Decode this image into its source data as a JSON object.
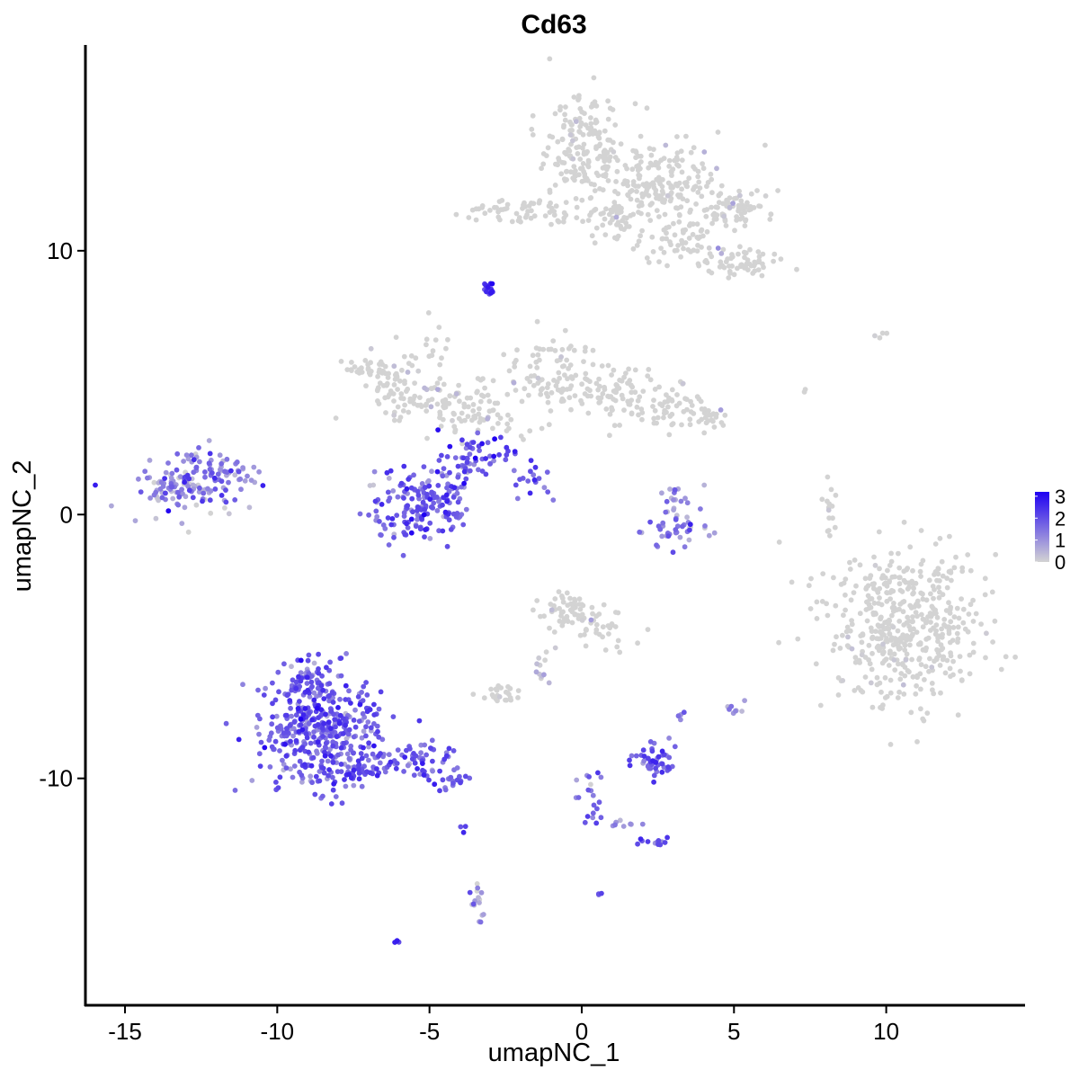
{
  "chart_data": {
    "type": "scatter",
    "title": "Cd63",
    "xlabel": "umapNC_1",
    "ylabel": "umapNC_2",
    "xlim": [
      -16.3,
      14.5
    ],
    "ylim": [
      -18.6,
      17.8
    ],
    "xticks": [
      -15,
      -10,
      -5,
      0,
      5,
      10
    ],
    "yticks": [
      -10,
      0,
      10
    ],
    "xtick_labels": [
      "-15",
      "-10",
      "-5",
      "0",
      "5",
      "10"
    ],
    "ytick_labels": [
      "-10",
      "0",
      "10"
    ],
    "grid": false,
    "legend": {
      "position": "right",
      "type": "colorbar",
      "min": 0,
      "max": 3.2,
      "ticks": [
        0,
        1,
        2,
        3
      ],
      "tick_labels": [
        "0",
        "1",
        "2",
        "3"
      ]
    },
    "colors": {
      "low": "#d3d3d3",
      "high": "#1f00f2"
    },
    "clusters": [
      {
        "x": 0.0,
        "y": 14.0,
        "sx": 0.65,
        "sy": 1.1,
        "n": 170,
        "expr": 0.05,
        "jitter": 0.3
      },
      {
        "x": 2.6,
        "y": 12.4,
        "sx": 1.1,
        "sy": 1.0,
        "n": 220,
        "expr": 0.04,
        "jitter": 0.3
      },
      {
        "x": 4.9,
        "y": 11.5,
        "sx": 0.6,
        "sy": 0.35,
        "n": 70,
        "expr": 0.04,
        "jitter": 0.3
      },
      {
        "x": 5.2,
        "y": 9.6,
        "sx": 0.6,
        "sy": 0.3,
        "n": 60,
        "expr": 0.05,
        "jitter": 0.3
      },
      {
        "x": 3.4,
        "y": 10.3,
        "sx": 0.6,
        "sy": 0.45,
        "n": 40,
        "expr": 0.04,
        "jitter": 0.3
      },
      {
        "x": 1.0,
        "y": 11.2,
        "sx": 0.35,
        "sy": 0.3,
        "n": 30,
        "expr": 0.05,
        "jitter": 0.3
      },
      {
        "x": -1.8,
        "y": 11.5,
        "sx": 1.1,
        "sy": 0.25,
        "n": 60,
        "expr": 0.05,
        "jitter": 0.3
      },
      {
        "x": -3.0,
        "y": 8.6,
        "sx": 0.12,
        "sy": 0.15,
        "n": 14,
        "expr": 2.5,
        "jitter": 0.4
      },
      {
        "x": -6.6,
        "y": 5.6,
        "sx": 0.6,
        "sy": 0.35,
        "n": 50,
        "expr": 0.08,
        "jitter": 0.3
      },
      {
        "x": -5.5,
        "y": 4.5,
        "sx": 0.8,
        "sy": 0.4,
        "n": 55,
        "expr": 0.1,
        "jitter": 0.3
      },
      {
        "x": -3.6,
        "y": 3.9,
        "sx": 1.0,
        "sy": 0.5,
        "n": 90,
        "expr": 0.2,
        "jitter": 0.4
      },
      {
        "x": -1.0,
        "y": 5.3,
        "sx": 0.8,
        "sy": 0.7,
        "n": 70,
        "expr": 0.1,
        "jitter": 0.3
      },
      {
        "x": 0.5,
        "y": 4.8,
        "sx": 0.8,
        "sy": 0.6,
        "n": 60,
        "expr": 0.1,
        "jitter": 0.3
      },
      {
        "x": 2.0,
        "y": 4.3,
        "sx": 0.9,
        "sy": 0.45,
        "n": 70,
        "expr": 0.08,
        "jitter": 0.3
      },
      {
        "x": 3.8,
        "y": 3.7,
        "sx": 0.5,
        "sy": 0.35,
        "n": 40,
        "expr": 0.05,
        "jitter": 0.3
      },
      {
        "x": -4.8,
        "y": 6.0,
        "sx": 0.2,
        "sy": 0.6,
        "n": 15,
        "expr": 0.05,
        "jitter": 0.3
      },
      {
        "x": -3.2,
        "y": 2.4,
        "sx": 0.6,
        "sy": 0.3,
        "n": 40,
        "expr": 2.0,
        "jitter": 0.6
      },
      {
        "x": -1.5,
        "y": 1.2,
        "sx": 0.5,
        "sy": 0.35,
        "n": 18,
        "expr": 1.9,
        "jitter": 0.5
      },
      {
        "x": -5.3,
        "y": 0.3,
        "sx": 0.85,
        "sy": 0.7,
        "n": 160,
        "expr": 1.8,
        "jitter": 0.6
      },
      {
        "x": -4.2,
        "y": 1.4,
        "sx": 0.45,
        "sy": 0.5,
        "n": 40,
        "expr": 1.7,
        "jitter": 0.6
      },
      {
        "x": -13.2,
        "y": 1.0,
        "sx": 0.9,
        "sy": 0.55,
        "n": 130,
        "expr": 1.2,
        "jitter": 0.8
      },
      {
        "x": -12.0,
        "y": 1.8,
        "sx": 0.45,
        "sy": 0.5,
        "n": 25,
        "expr": 1.0,
        "jitter": 0.7
      },
      {
        "x": -11.4,
        "y": 1.4,
        "sx": 0.4,
        "sy": 0.18,
        "n": 20,
        "expr": 1.3,
        "jitter": 0.6
      },
      {
        "x": 3.1,
        "y": -0.6,
        "sx": 0.6,
        "sy": 0.3,
        "n": 35,
        "expr": 1.5,
        "jitter": 0.7
      },
      {
        "x": 3.0,
        "y": 0.5,
        "sx": 0.4,
        "sy": 0.5,
        "n": 22,
        "expr": 0.7,
        "jitter": 0.7
      },
      {
        "x": 8.2,
        "y": 0.3,
        "sx": 0.15,
        "sy": 0.6,
        "n": 15,
        "expr": 0.02,
        "jitter": 0.2
      },
      {
        "x": 10.6,
        "y": -4.3,
        "sx": 1.25,
        "sy": 1.4,
        "n": 480,
        "expr": 0.03,
        "jitter": 0.2
      },
      {
        "x": -0.5,
        "y": -3.7,
        "sx": 0.45,
        "sy": 0.35,
        "n": 60,
        "expr": 0.2,
        "jitter": 0.4
      },
      {
        "x": 0.8,
        "y": -4.5,
        "sx": 0.45,
        "sy": 0.4,
        "n": 30,
        "expr": 0.2,
        "jitter": 0.4
      },
      {
        "x": -1.3,
        "y": -5.6,
        "sx": 0.2,
        "sy": 0.5,
        "n": 12,
        "expr": 0.3,
        "jitter": 0.4
      },
      {
        "x": -2.7,
        "y": -6.8,
        "sx": 0.35,
        "sy": 0.15,
        "n": 25,
        "expr": 0.2,
        "jitter": 0.3
      },
      {
        "x": -8.6,
        "y": -8.2,
        "sx": 1.0,
        "sy": 1.1,
        "n": 400,
        "expr": 1.75,
        "jitter": 0.5
      },
      {
        "x": -8.9,
        "y": -6.2,
        "sx": 0.45,
        "sy": 0.5,
        "n": 60,
        "expr": 1.7,
        "jitter": 0.5
      },
      {
        "x": -5.7,
        "y": -9.3,
        "sx": 0.7,
        "sy": 0.35,
        "n": 70,
        "expr": 1.8,
        "jitter": 0.5
      },
      {
        "x": -4.3,
        "y": -10.1,
        "sx": 0.35,
        "sy": 0.2,
        "n": 20,
        "expr": 1.8,
        "jitter": 0.5
      },
      {
        "x": -7.5,
        "y": -9.9,
        "sx": 0.4,
        "sy": 0.2,
        "n": 25,
        "expr": 2.2,
        "jitter": 0.4
      },
      {
        "x": 2.4,
        "y": -9.3,
        "sx": 0.35,
        "sy": 0.3,
        "n": 50,
        "expr": 1.8,
        "jitter": 0.5
      },
      {
        "x": 0.3,
        "y": -11.0,
        "sx": 0.3,
        "sy": 0.5,
        "n": 20,
        "expr": 1.6,
        "jitter": 0.5
      },
      {
        "x": 1.3,
        "y": -11.8,
        "sx": 0.35,
        "sy": 0.15,
        "n": 8,
        "expr": 1.2,
        "jitter": 0.6
      },
      {
        "x": 2.3,
        "y": -12.5,
        "sx": 0.3,
        "sy": 0.1,
        "n": 12,
        "expr": 1.9,
        "jitter": 0.5
      },
      {
        "x": -3.4,
        "y": -14.7,
        "sx": 0.15,
        "sy": 0.5,
        "n": 16,
        "expr": 0.9,
        "jitter": 0.7
      },
      {
        "x": -3.9,
        "y": -11.8,
        "sx": 0.05,
        "sy": 0.1,
        "n": 3,
        "expr": 2.0,
        "jitter": 0.3
      },
      {
        "x": -6.1,
        "y": -16.2,
        "sx": 0.05,
        "sy": 0.05,
        "n": 3,
        "expr": 2.6,
        "jitter": 0.3
      },
      {
        "x": 0.6,
        "y": -14.4,
        "sx": 0.04,
        "sy": 0.08,
        "n": 3,
        "expr": 2.0,
        "jitter": 0.3
      },
      {
        "x": 3.3,
        "y": -7.6,
        "sx": 0.1,
        "sy": 0.1,
        "n": 4,
        "expr": 1.0,
        "jitter": 0.5
      },
      {
        "x": 5.0,
        "y": -7.3,
        "sx": 0.15,
        "sy": 0.2,
        "n": 8,
        "expr": 1.3,
        "jitter": 0.5
      },
      {
        "x": 9.8,
        "y": 6.8,
        "sx": 0.2,
        "sy": 0.1,
        "n": 4,
        "expr": 0.0,
        "jitter": 0.1
      },
      {
        "x": 7.4,
        "y": 4.8,
        "sx": 0.05,
        "sy": 0.1,
        "n": 2,
        "expr": 0.0,
        "jitter": 0.1
      }
    ]
  }
}
